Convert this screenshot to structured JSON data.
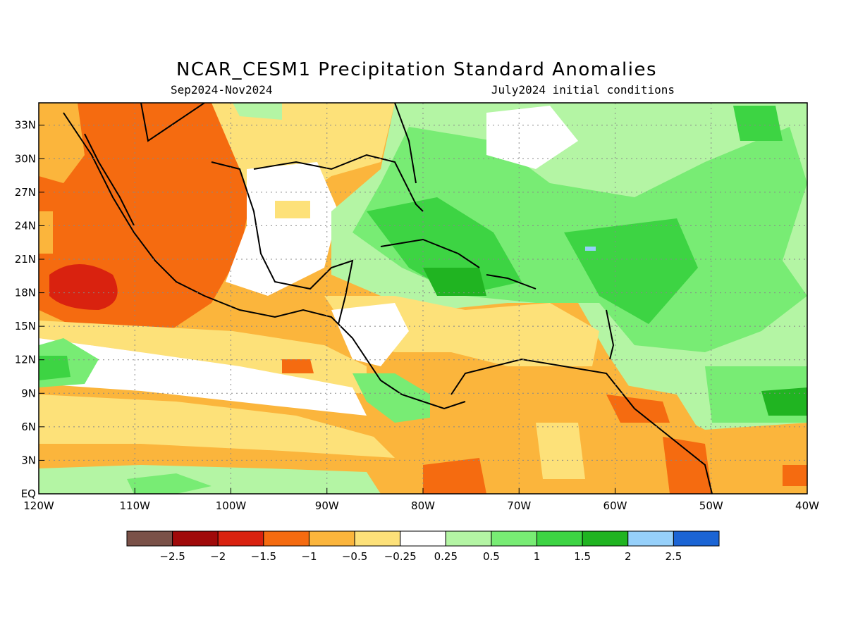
{
  "header": {
    "title": "NCAR_CESM1 Precipitation Standard Anomalies",
    "period": "Sep2024-Nov2024",
    "init": "July2024 initial conditions"
  },
  "map": {
    "lon_range": [
      -120,
      -40
    ],
    "lat_range": [
      0,
      35
    ],
    "x_ticks": [
      "120W",
      "110W",
      "100W",
      "90W",
      "80W",
      "70W",
      "60W",
      "50W",
      "40W"
    ],
    "y_ticks": [
      "EQ",
      "3N",
      "6N",
      "9N",
      "12N",
      "15N",
      "18N",
      "21N",
      "24N",
      "27N",
      "30N",
      "33N"
    ],
    "grid": "dotted"
  },
  "legend": {
    "colors": [
      "#7a5148",
      "#a00a0a",
      "#d9220f",
      "#f56b10",
      "#fbb53c",
      "#fde179",
      "#ffffff",
      "#b4f5a4",
      "#78ec74",
      "#3dd443",
      "#20b421",
      "#96d0fa",
      "#1b64d4"
    ],
    "labels": [
      "-2.5",
      "-2",
      "-1.5",
      "-1",
      "-0.5",
      "-0.25",
      "0.25",
      "0.5",
      "1",
      "1.5",
      "2",
      "2.5"
    ]
  },
  "fill_colors": {
    "orange_light": "#fbb53c",
    "yellow": "#fde179",
    "orange": "#f56b10",
    "red": "#d9220f",
    "green_pale": "#b4f5a4",
    "green_light": "#78ec74",
    "green_mid": "#3dd443",
    "green_dark": "#20b421",
    "blue_light": "#96d0fa"
  }
}
